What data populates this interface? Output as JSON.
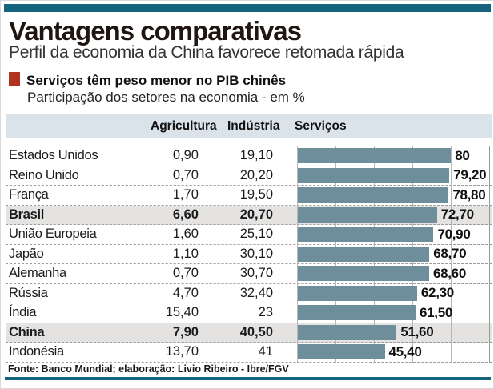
{
  "header": {
    "title": "Vantagens comparativas",
    "subtitle": "Perfil da economia da China favorece retomada rápida"
  },
  "section": {
    "heading": "Serviços têm peso menor no PIB chinês",
    "subheading": "Participação dos setores na economia - em %"
  },
  "table": {
    "columns": [
      "Agricultura",
      "Indústria",
      "Serviços"
    ],
    "rows": [
      {
        "country": "Estados Unidos",
        "agricultura": "0,90",
        "industria": "19,10",
        "servicos": 80,
        "servicos_label": "80",
        "highlight": false
      },
      {
        "country": "Reino Unido",
        "agricultura": "0,70",
        "industria": "20,20",
        "servicos": 79.2,
        "servicos_label": "79,20",
        "highlight": false
      },
      {
        "country": "França",
        "agricultura": "1,70",
        "industria": "19,50",
        "servicos": 78.8,
        "servicos_label": "78,80",
        "highlight": false
      },
      {
        "country": "Brasil",
        "agricultura": "6,60",
        "industria": "20,70",
        "servicos": 72.7,
        "servicos_label": "72,70",
        "highlight": true
      },
      {
        "country": "União Europeia",
        "agricultura": "1,60",
        "industria": "25,10",
        "servicos": 70.9,
        "servicos_label": "70,90",
        "highlight": false
      },
      {
        "country": "Japão",
        "agricultura": "1,10",
        "industria": "30,10",
        "servicos": 68.7,
        "servicos_label": "68,70",
        "highlight": false
      },
      {
        "country": "Alemanha",
        "agricultura": "0,70",
        "industria": "30,70",
        "servicos": 68.6,
        "servicos_label": "68,60",
        "highlight": false
      },
      {
        "country": "Rússia",
        "agricultura": "4,70",
        "industria": "32,40",
        "servicos": 62.3,
        "servicos_label": "62,30",
        "highlight": false
      },
      {
        "country": "Índia",
        "agricultura": "15,40",
        "industria": "23",
        "servicos": 61.5,
        "servicos_label": "61,50",
        "highlight": false
      },
      {
        "country": "China",
        "agricultura": "7,90",
        "industria": "40,50",
        "servicos": 51.6,
        "servicos_label": "51,60",
        "highlight": true
      },
      {
        "country": "Indonésia",
        "agricultura": "13,70",
        "industria": "41",
        "servicos": 45.4,
        "servicos_label": "45,40",
        "highlight": false
      }
    ]
  },
  "chart_data": {
    "type": "bar",
    "orientation": "horizontal",
    "title": "Serviços têm peso menor no PIB chinês",
    "subtitle": "Participação dos setores na economia - em %",
    "unit": "%",
    "xlim": [
      0,
      100
    ],
    "gridlines": [
      0,
      20,
      40,
      60,
      80,
      100
    ],
    "grid": true,
    "bar_series_name": "Serviços",
    "categories": [
      "Estados Unidos",
      "Reino Unido",
      "França",
      "Brasil",
      "União Europeia",
      "Japão",
      "Alemanha",
      "Rússia",
      "Índia",
      "China",
      "Indonésia"
    ],
    "series": [
      {
        "name": "Agricultura",
        "values": [
          0.9,
          0.7,
          1.7,
          6.6,
          1.6,
          1.1,
          0.7,
          4.7,
          15.4,
          7.9,
          13.7
        ]
      },
      {
        "name": "Indústria",
        "values": [
          19.1,
          20.2,
          19.5,
          20.7,
          25.1,
          30.1,
          30.7,
          32.4,
          23,
          40.5,
          41
        ]
      },
      {
        "name": "Serviços",
        "values": [
          80,
          79.2,
          78.8,
          72.7,
          70.9,
          68.7,
          68.6,
          62.3,
          61.5,
          51.6,
          45.4
        ]
      }
    ],
    "highlighted_categories": [
      "Brasil",
      "China"
    ]
  },
  "footer": {
    "source": "Fonte: Banco Mundial; elaboração: Livio Ribeiro - Ibre/FGV"
  },
  "colors": {
    "rule_teal": "#15637d",
    "bullet_red": "#b23420",
    "bar_fill": "#6f8e9b",
    "column_header_band": "#dbe3ea",
    "highlight_row": "#e4e3e1",
    "dashed_line": "#9b9b9b"
  }
}
